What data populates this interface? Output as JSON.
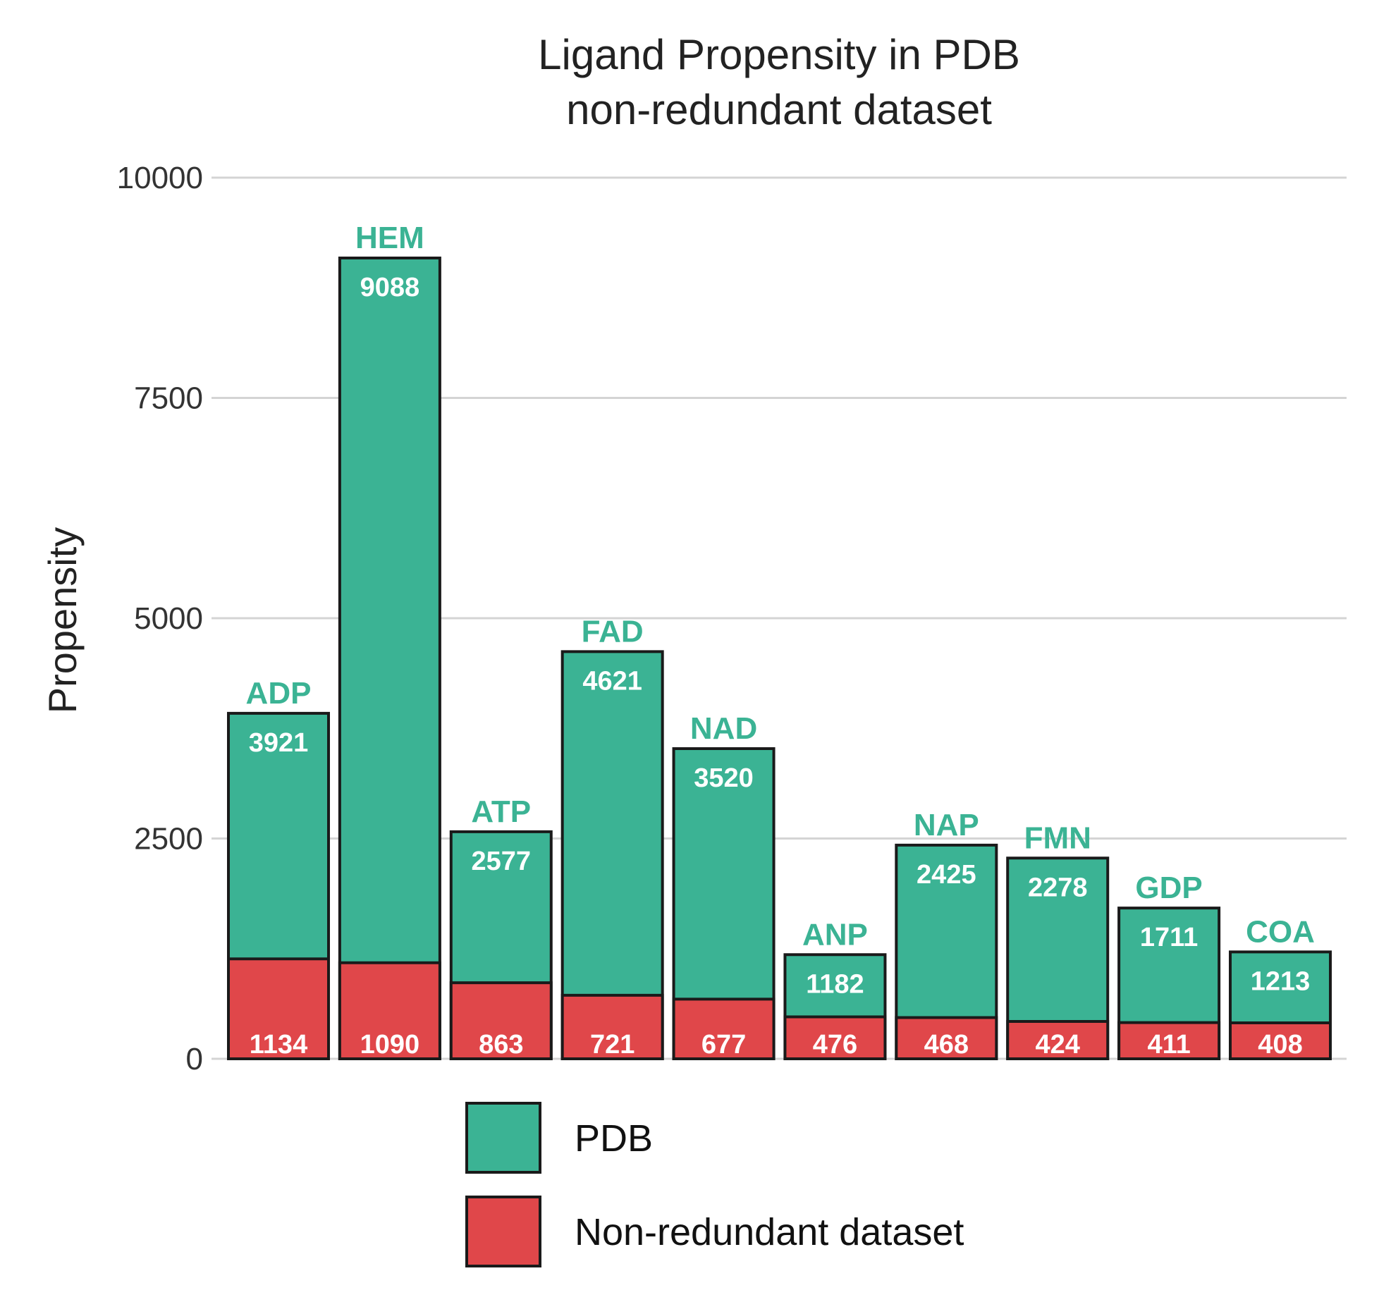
{
  "chart_data": {
    "type": "bar",
    "stacked": true,
    "title_lines": [
      "Ligand Propensity in PDB",
      "non-redundant dataset"
    ],
    "xlabel": "",
    "ylabel": "Propensity",
    "ylim": [
      0,
      10000
    ],
    "yticks": [
      0,
      2500,
      5000,
      7500,
      10000
    ],
    "grid": true,
    "categories": [
      "ADP",
      "HEM",
      "ATP",
      "FAD",
      "NAD",
      "ANP",
      "NAP",
      "FMN",
      "GDP",
      "COA"
    ],
    "series": [
      {
        "name": "PDB",
        "color": "#3bb394",
        "values": [
          3921,
          9088,
          2577,
          4621,
          3520,
          1182,
          2425,
          2278,
          1711,
          1213
        ]
      },
      {
        "name": "Non-redundant dataset",
        "color": "#e0474a",
        "values": [
          1134,
          1090,
          863,
          721,
          677,
          476,
          468,
          424,
          411,
          408
        ]
      }
    ],
    "category_label_color": "#3bb394",
    "legend_position": "bottom"
  }
}
